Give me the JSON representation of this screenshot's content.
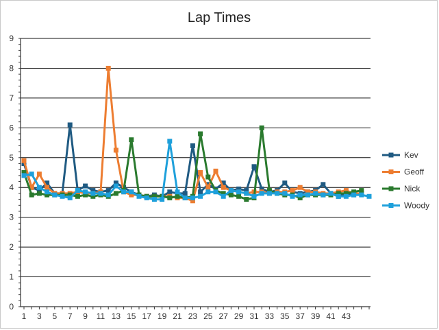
{
  "chart_data": {
    "type": "line",
    "title": "Lap Times",
    "xlabel": "",
    "ylabel": "",
    "ylim": [
      0,
      9
    ],
    "yticks": [
      0,
      1,
      2,
      3,
      4,
      5,
      6,
      7,
      8,
      9
    ],
    "x": [
      1,
      2,
      3,
      4,
      5,
      6,
      7,
      8,
      9,
      10,
      11,
      12,
      13,
      14,
      15,
      16,
      17,
      18,
      19,
      20,
      21,
      22,
      23,
      24,
      25,
      26,
      27,
      28,
      29,
      30,
      31,
      32,
      33,
      34,
      35,
      36,
      37,
      38,
      39,
      40,
      41,
      42,
      43,
      44,
      45,
      46
    ],
    "x_tick_labels": [
      "1",
      "3",
      "5",
      "7",
      "9",
      "11",
      "13",
      "15",
      "17",
      "19",
      "21",
      "23",
      "25",
      "27",
      "29",
      "31",
      "33",
      "35",
      "37",
      "39",
      "41",
      "43"
    ],
    "grid": "horizontal",
    "legend_position": "right",
    "series": [
      {
        "name": "Kev",
        "color": "#1f5a82",
        "values": [
          4.8,
          4.0,
          3.9,
          4.15,
          3.8,
          3.8,
          6.1,
          3.9,
          4.05,
          3.9,
          3.85,
          3.9,
          4.15,
          4.0,
          3.85,
          3.75,
          3.7,
          3.75,
          3.7,
          3.85,
          3.8,
          3.8,
          5.4,
          3.85,
          4.1,
          3.95,
          4.15,
          3.9,
          3.95,
          3.9,
          4.7,
          3.95,
          3.85,
          3.9,
          4.15,
          3.85,
          3.8,
          3.85,
          3.9,
          4.1,
          3.8,
          3.7,
          3.8,
          3.75,
          3.8,
          null
        ]
      },
      {
        "name": "Geoff",
        "color": "#ed7d31",
        "values": [
          4.9,
          4.0,
          4.45,
          4.0,
          3.8,
          3.8,
          3.8,
          3.85,
          3.8,
          3.8,
          3.85,
          8.0,
          5.25,
          3.85,
          3.75,
          3.75,
          3.7,
          3.7,
          3.7,
          3.7,
          3.65,
          3.65,
          3.55,
          4.5,
          4.0,
          4.55,
          4.0,
          3.9,
          3.85,
          3.8,
          3.85,
          3.85,
          3.8,
          3.85,
          3.85,
          3.9,
          4.0,
          3.85,
          3.85,
          3.8,
          3.8,
          3.85,
          3.9,
          3.8,
          3.8,
          null
        ]
      },
      {
        "name": "Nick",
        "color": "#2a7a2e",
        "values": [
          4.5,
          3.75,
          3.8,
          3.75,
          3.75,
          3.75,
          3.75,
          3.7,
          3.75,
          3.7,
          3.75,
          3.7,
          3.8,
          3.9,
          5.6,
          3.75,
          3.7,
          3.7,
          3.7,
          3.65,
          3.7,
          3.65,
          3.7,
          5.8,
          4.35,
          3.9,
          3.8,
          3.75,
          3.7,
          3.6,
          3.65,
          6.0,
          3.9,
          3.8,
          3.75,
          3.75,
          3.65,
          3.75,
          3.75,
          3.75,
          3.75,
          3.8,
          3.8,
          3.85,
          3.9,
          null
        ]
      },
      {
        "name": "Woody",
        "color": "#1ea0db",
        "values": [
          4.4,
          4.45,
          4.0,
          3.85,
          3.75,
          3.7,
          3.65,
          3.9,
          3.85,
          3.8,
          3.8,
          3.75,
          4.05,
          3.85,
          3.85,
          3.7,
          3.65,
          3.6,
          3.6,
          5.55,
          3.85,
          3.65,
          3.65,
          3.7,
          3.85,
          3.85,
          3.7,
          3.9,
          3.85,
          3.8,
          3.7,
          3.8,
          3.8,
          3.8,
          3.8,
          3.7,
          3.75,
          3.75,
          3.8,
          3.75,
          3.8,
          3.7,
          3.7,
          3.75,
          3.75,
          3.7
        ]
      }
    ]
  }
}
